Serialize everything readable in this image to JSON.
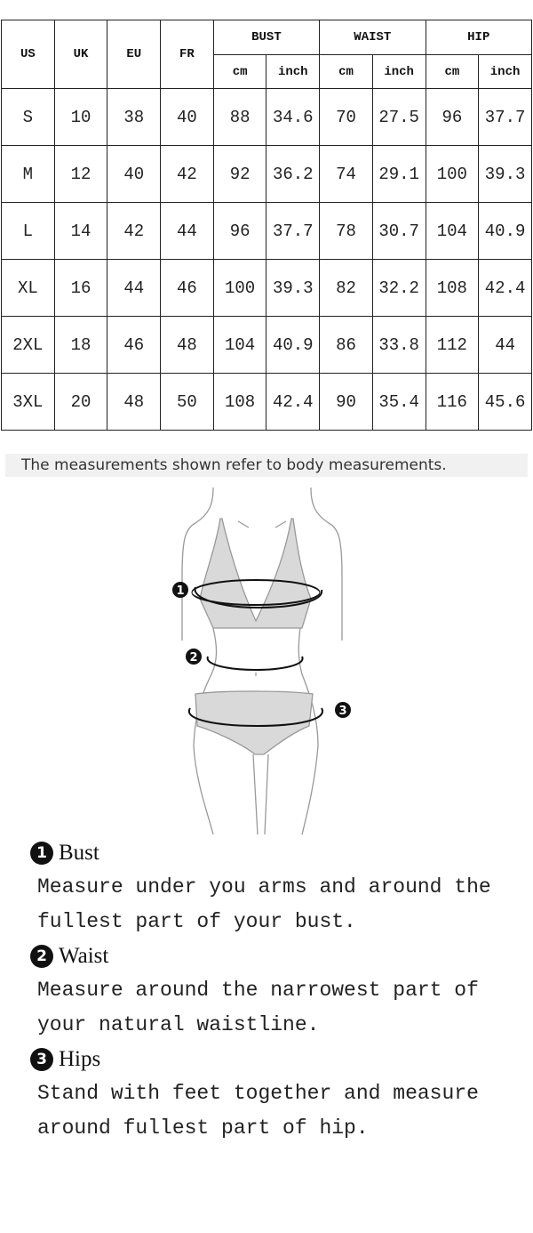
{
  "table": {
    "headers": {
      "us": "US",
      "uk": "UK",
      "eu": "EU",
      "fr": "FR",
      "bust": "BUST",
      "waist": "WAIST",
      "hip": "HIP",
      "cm": "cm",
      "inch": "inch"
    },
    "rows": [
      [
        "S",
        "10",
        "38",
        "40",
        "88",
        "34.6",
        "70",
        "27.5",
        "96",
        "37.7"
      ],
      [
        "M",
        "12",
        "40",
        "42",
        "92",
        "36.2",
        "74",
        "29.1",
        "100",
        "39.3"
      ],
      [
        "L",
        "14",
        "42",
        "44",
        "96",
        "37.7",
        "78",
        "30.7",
        "104",
        "40.9"
      ],
      [
        "XL",
        "16",
        "44",
        "46",
        "100",
        "39.3",
        "82",
        "32.2",
        "108",
        "42.4"
      ],
      [
        "2XL",
        "18",
        "46",
        "48",
        "104",
        "40.9",
        "86",
        "33.8",
        "112",
        "44"
      ],
      [
        "3XL",
        "20",
        "48",
        "50",
        "108",
        "42.4",
        "90",
        "35.4",
        "116",
        "45.6"
      ]
    ]
  },
  "caption": "The measurements shown refer to body measurements.",
  "figure": {
    "markers": [
      "1",
      "2",
      "3"
    ]
  },
  "instructions": [
    {
      "num": "1",
      "title": "Bust",
      "lines": [
        "Measure under you arms and around the",
        "fullest part of your bust."
      ]
    },
    {
      "num": "2",
      "title": "Waist",
      "lines": [
        "Measure around the narrowest part of",
        "your natural waistline."
      ]
    },
    {
      "num": "3",
      "title": "Hips",
      "lines": [
        "Stand with feet together and measure",
        "around fullest part of hip."
      ]
    }
  ]
}
